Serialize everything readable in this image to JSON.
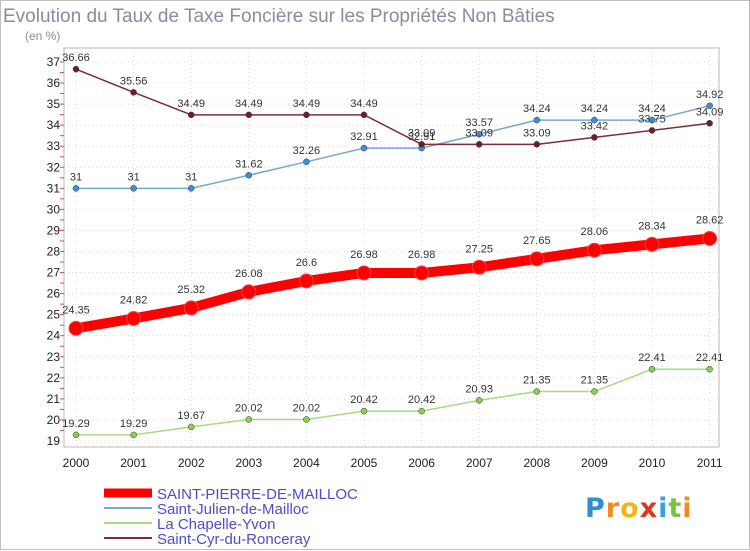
{
  "chart_data": {
    "type": "line",
    "title": "Evolution du Taux de Taxe Foncière sur les Propriétés Non Bâties",
    "unit_label": "(en %)",
    "x": [
      "2000",
      "2001",
      "2002",
      "2003",
      "2004",
      "2005",
      "2006",
      "2007",
      "2008",
      "2009",
      "2010",
      "2011"
    ],
    "ylim": [
      19,
      37
    ],
    "yticks": [
      19,
      20,
      21,
      22,
      23,
      24,
      25,
      26,
      27,
      28,
      29,
      30,
      31,
      32,
      33,
      34,
      35,
      36,
      37
    ],
    "grid": true,
    "legend_position": "bottom-left",
    "series": [
      {
        "name": "SAINT-PIERRE-DE-MAILLOC",
        "color": "#ff0000",
        "point_color": "#ff0000",
        "values": [
          24.35,
          24.82,
          25.32,
          26.08,
          26.6,
          26.98,
          26.98,
          27.25,
          27.65,
          28.06,
          28.34,
          28.62
        ],
        "labels": [
          "24.35",
          "24.82",
          "25.32",
          "26.08",
          "26.6",
          "26.98",
          "26.98",
          "27.25",
          "27.65",
          "28.06",
          "28.34",
          "28.62"
        ]
      },
      {
        "name": "Saint-Julien-de-Mailloc",
        "color": "#7aa6cf",
        "point_color": "#3d8fd6",
        "values": [
          31,
          31,
          31,
          31.62,
          32.26,
          32.91,
          32.91,
          33.57,
          34.24,
          34.24,
          34.24,
          34.92
        ],
        "labels": [
          "31",
          "31",
          "31",
          "31.62",
          "32.26",
          "32.91",
          "32.91",
          "33.57",
          "34.24",
          "34.24",
          "34.24",
          "34.92"
        ]
      },
      {
        "name": "La Chapelle-Yvon",
        "color": "#a6dc80",
        "point_color": "#8ad050",
        "values": [
          19.29,
          19.29,
          19.67,
          20.02,
          20.02,
          20.42,
          20.42,
          20.93,
          21.35,
          21.35,
          22.41,
          22.41
        ],
        "labels": [
          "19.29",
          "19.29",
          "19.67",
          "20.02",
          "20.02",
          "20.42",
          "20.42",
          "20.93",
          "21.35",
          "21.35",
          "22.41",
          "22.41"
        ]
      },
      {
        "name": "Saint-Cyr-du-Ronceray",
        "color": "#7a2e36",
        "point_color": "#6e1e28",
        "values": [
          36.66,
          35.56,
          34.49,
          34.49,
          34.49,
          34.49,
          33.09,
          33.09,
          33.09,
          33.42,
          33.75,
          34.09
        ],
        "labels": [
          "36.66",
          "35.56",
          "34.49",
          "34.49",
          "34.49",
          "34.49",
          "33.09",
          "33.09",
          "33.09",
          "33.42",
          "33.75",
          "34.09"
        ]
      }
    ]
  },
  "logo": {
    "text": "Proxiti"
  }
}
